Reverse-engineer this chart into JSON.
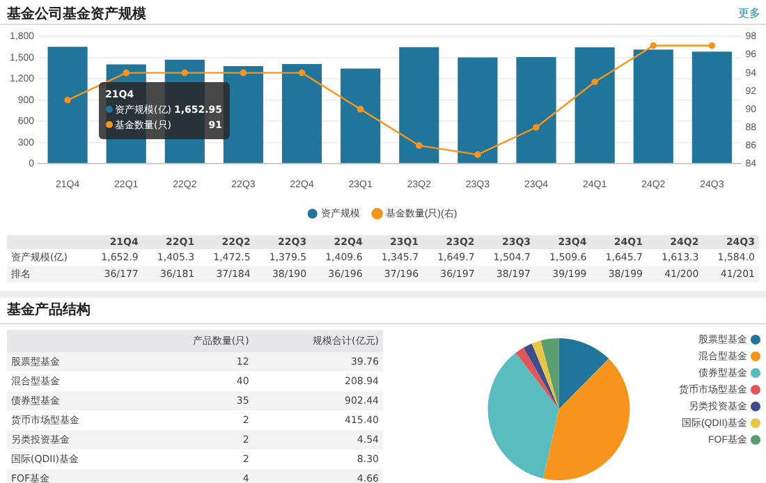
{
  "chart_data": [
    {
      "type": "bar",
      "title": "基金公司基金资产规模",
      "categories": [
        "21Q4",
        "22Q1",
        "22Q2",
        "22Q3",
        "22Q4",
        "23Q1",
        "23Q2",
        "23Q3",
        "23Q4",
        "24Q1",
        "24Q2",
        "24Q3"
      ],
      "series": [
        {
          "name": "资产规模",
          "type": "bar",
          "color": "#21759b",
          "values": [
            1652.9,
            1405.3,
            1472.5,
            1379.5,
            1409.6,
            1345.7,
            1649.7,
            1504.7,
            1509.6,
            1645.7,
            1613.3,
            1584.0
          ]
        },
        {
          "name": "基金数量(只)(右)",
          "type": "line",
          "axis": "y2",
          "color": "#f7941d",
          "values": [
            91,
            94,
            94,
            94,
            94,
            90,
            86,
            85,
            88,
            93,
            97,
            97
          ]
        }
      ],
      "ylim": [
        0,
        1800
      ],
      "yticks": [
        0,
        {
          "value": 300,
          "label": "300"
        },
        {
          "value": 600,
          "label": "600"
        },
        {
          "value": 900,
          "label": "900"
        },
        {
          "value": 1200,
          "label": "1,200"
        },
        {
          "value": 1500,
          "label": "1,500"
        },
        {
          "value": 1800,
          "label": "1,800"
        }
      ],
      "y2lim": [
        84,
        98
      ],
      "y2ticks": [
        84,
        86,
        88,
        90,
        92,
        94,
        96,
        98
      ],
      "grid": "y",
      "legend": "bottom",
      "marker": "circle",
      "annotations": [
        "更多",
        "21Q4",
        "资产规模(亿)",
        "1,652.95",
        "基金数量(只)",
        "91",
        "资产规模(亿)",
        "排名",
        "1,652.9",
        "1,405.3",
        "1,472.5",
        "1,379.5",
        "1,409.6",
        "1,345.7",
        "1,649.7",
        "1,504.7",
        "1,509.6",
        "1,645.7",
        "1,613.3",
        "1,584.0",
        "36/177",
        "36/181",
        "37/184",
        "38/190",
        "36/196",
        "37/196",
        "36/197",
        "38/197",
        "39/199",
        "38/199",
        "41/200",
        "41/201"
      ]
    },
    {
      "type": "pie",
      "categories": [
        "股票型基金",
        "混合型基金",
        "债券型基金",
        "货币市场型基金",
        "另类投资基金",
        "国际(QDII)基金",
        "FOF基金"
      ],
      "values": [
        12.4,
        41.2,
        36.1,
        2.1,
        2.1,
        2.1,
        4.1
      ],
      "colors": [
        "#21759b",
        "#f7941d",
        "#5bbcbf",
        "#e0565b",
        "#3e4e8c",
        "#e8c547",
        "#5a9e6f"
      ],
      "legend": "right",
      "annotations": [
        "产品数量(只)",
        "规模合计(亿元)",
        "12",
        "40",
        "35",
        "2",
        "2",
        "2",
        "4",
        "39.76",
        "208.94",
        "902.44",
        "415.40",
        "4.54",
        "8.30",
        "4.66",
        "基金产品结构"
      ]
    }
  ]
}
